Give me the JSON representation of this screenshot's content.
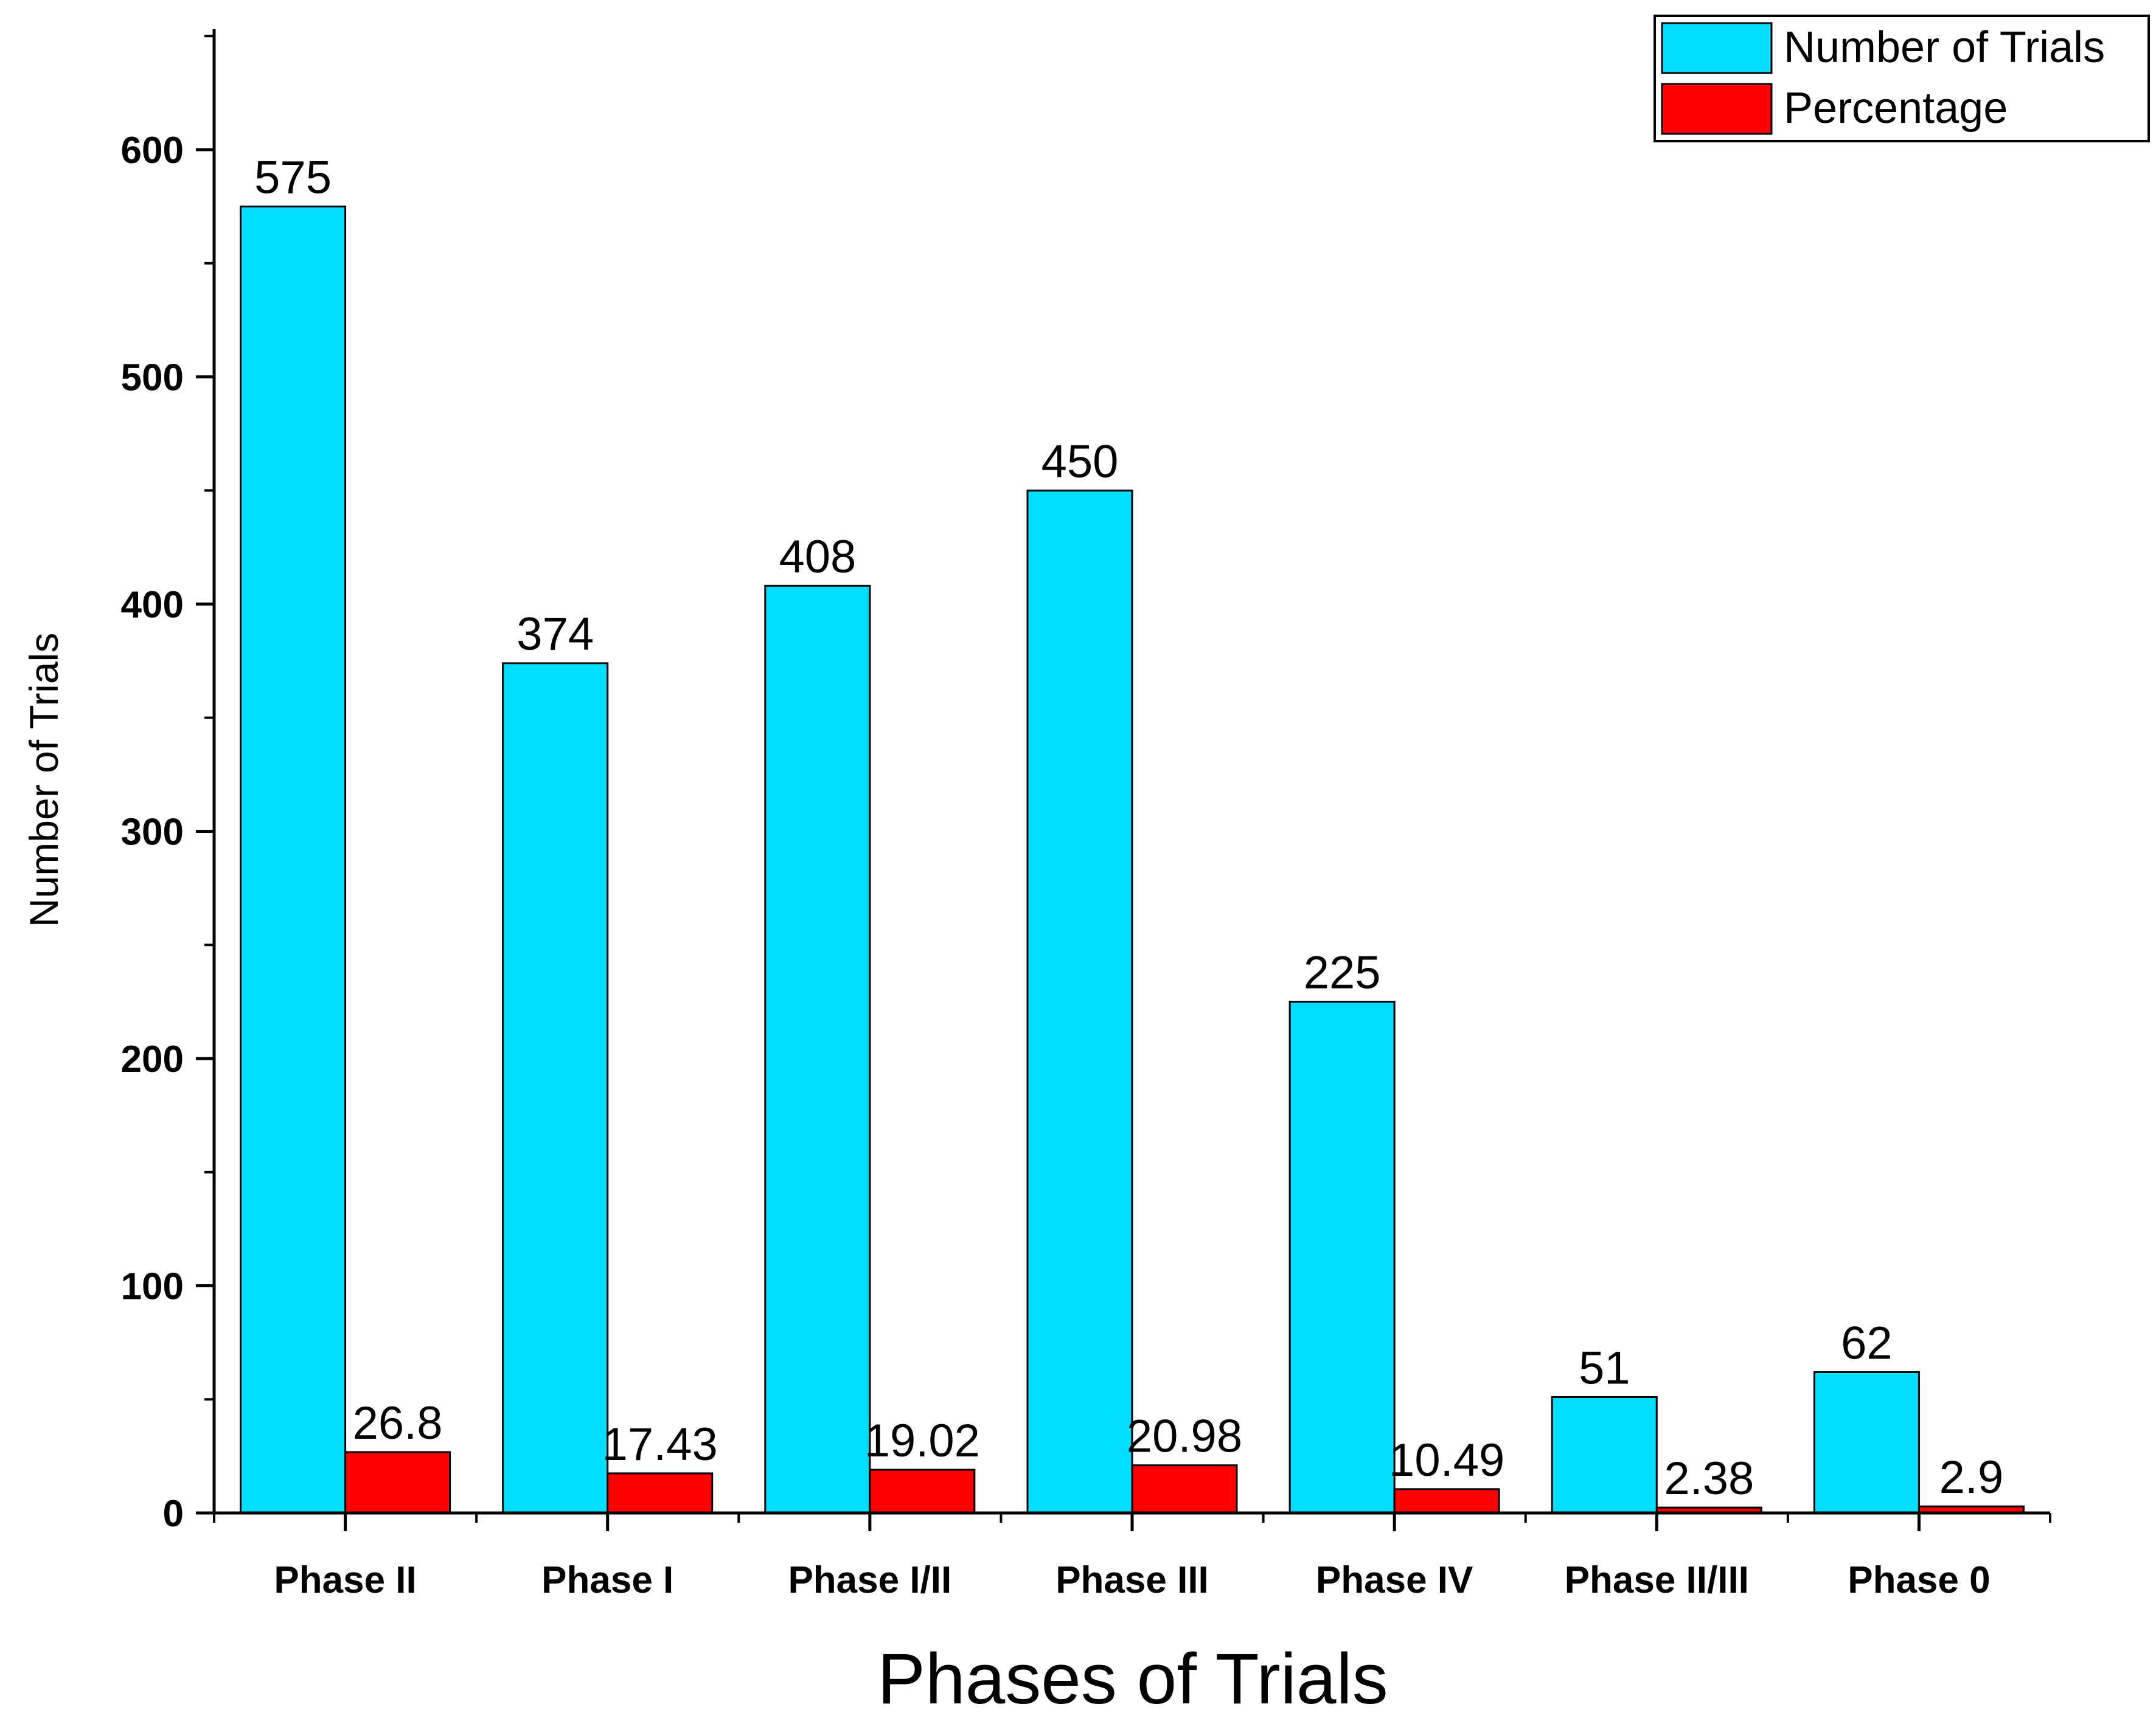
{
  "chart_data": {
    "type": "bar",
    "categories": [
      "Phase II",
      "Phase I",
      "Phase I/II",
      "Phase III",
      "Phase IV",
      "Phase II/III",
      "Phase 0"
    ],
    "series": [
      {
        "name": "Number of Trials",
        "values": [
          575,
          374,
          408,
          450,
          225,
          51,
          62
        ],
        "labels": [
          "575",
          "374",
          "408",
          "450",
          "225",
          "51",
          "62"
        ],
        "color": "#00DDFF"
      },
      {
        "name": "Percentage",
        "values": [
          26.8,
          17.43,
          19.02,
          20.98,
          10.49,
          2.38,
          2.9
        ],
        "labels": [
          "26.8",
          "17.43",
          "19.02",
          "20.98",
          "10.49",
          "2.38",
          "2.9"
        ],
        "color": "#FF0000"
      }
    ],
    "xlabel": "Phases of Trials",
    "ylabel": "Number of Trials",
    "ylim": [
      0,
      650
    ],
    "yticks": [
      0,
      100,
      200,
      300,
      400,
      500,
      600
    ],
    "ytick_labels": [
      "0",
      "100",
      "200",
      "300",
      "400",
      "500",
      "600"
    ],
    "grid": false,
    "legend_position": "top-right"
  }
}
